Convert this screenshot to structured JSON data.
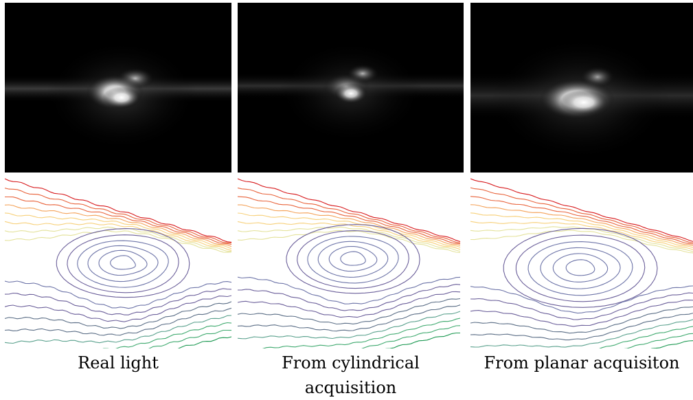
{
  "captions": {
    "real": "Real light",
    "cylindrical": "From cylindrical acquisition",
    "planar": "From planar acquisiton"
  },
  "panels": [
    {
      "key": "real",
      "kind": "light-render"
    },
    {
      "key": "cylindrical",
      "kind": "light-render"
    },
    {
      "key": "planar",
      "kind": "light-render"
    }
  ],
  "contour_colors": [
    "#d7191c",
    "#e8623a",
    "#f4a259",
    "#f7d07a",
    "#e4e29b",
    "#b9c68a",
    "#8aa4b4",
    "#6d74a8",
    "#6b5f9a",
    "#5b6e86",
    "#5aa18d",
    "#3ea96e",
    "#1a9850"
  ]
}
